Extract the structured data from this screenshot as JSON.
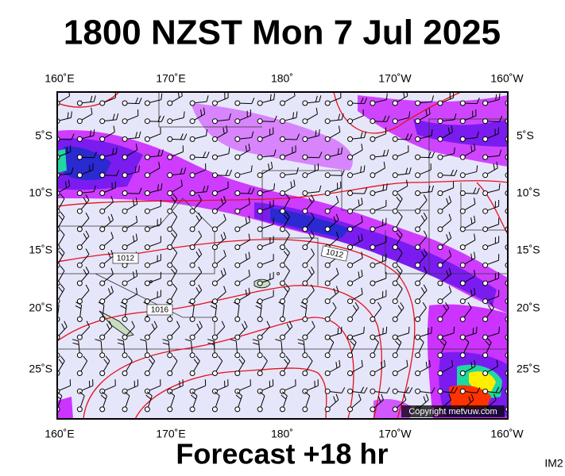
{
  "header": {
    "title": "1800 NZST Mon 7 Jul 2025"
  },
  "map": {
    "top_labels": [
      "160˚E",
      "170˚E",
      "180˚",
      "170˚W",
      "160˚W"
    ],
    "bottom_labels": [
      "160˚E",
      "170˚E",
      "180˚",
      "170˚W",
      "160˚W"
    ],
    "left_labels": [
      "5˚S",
      "10˚S",
      "15˚S",
      "20˚S",
      "25˚S"
    ],
    "right_labels": [
      "5˚S",
      "10˚S",
      "15˚S",
      "20˚S",
      "25˚S"
    ],
    "isobar_labels": [
      "1012",
      "1012",
      "1016"
    ],
    "copyright": "Copyright metvuw.com"
  },
  "footer": {
    "caption": "Forecast +18 hr",
    "code": "IM2"
  }
}
